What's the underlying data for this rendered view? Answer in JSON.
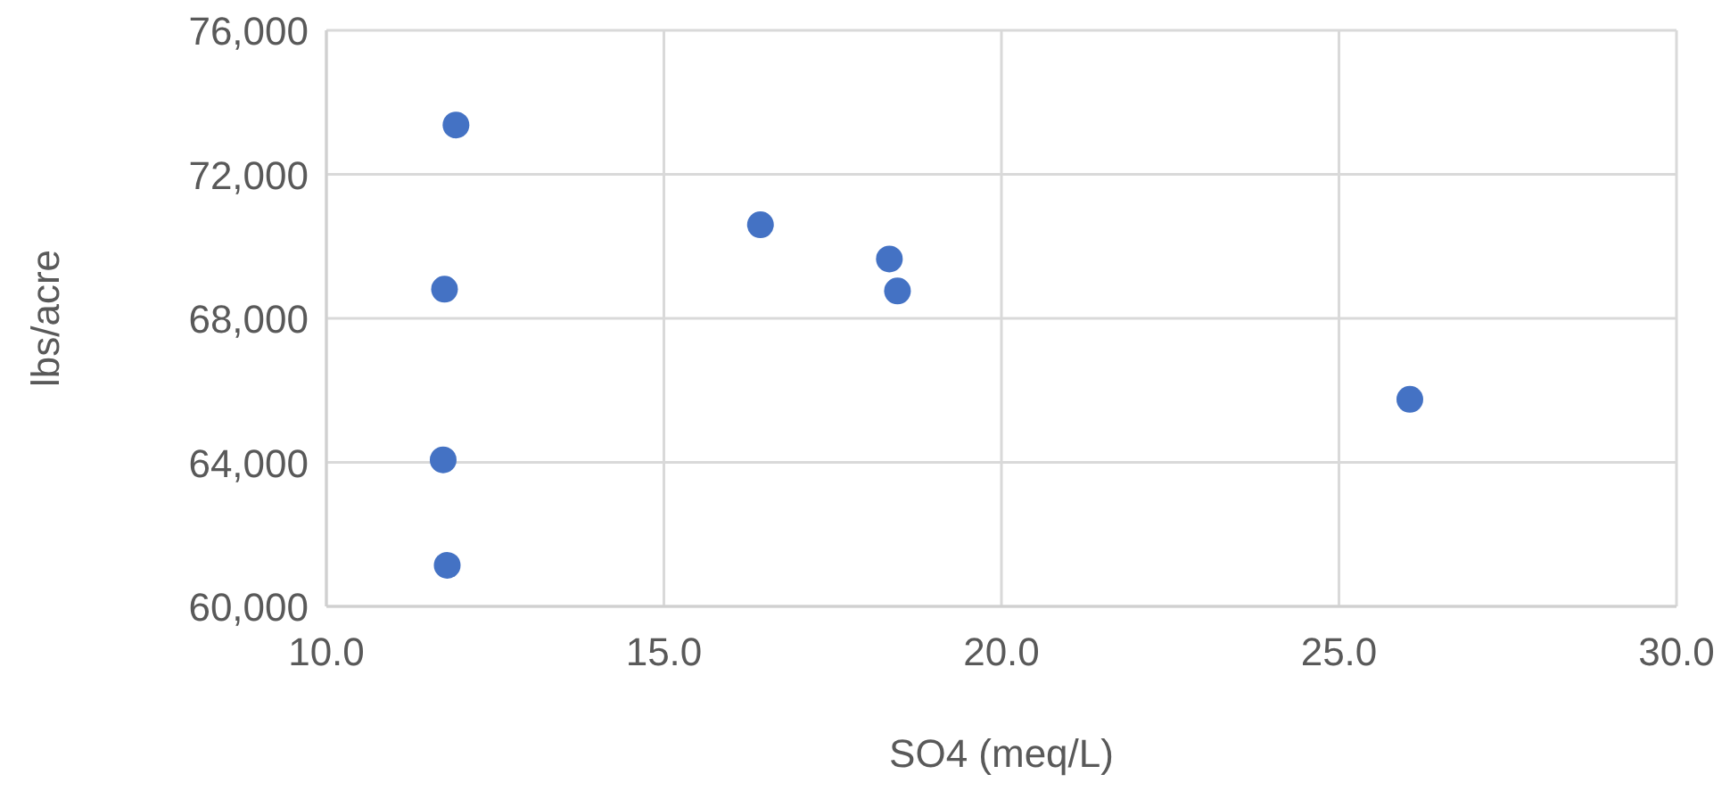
{
  "chart_data": {
    "type": "scatter",
    "xlabel": "SO4 (meq/L)",
    "ylabel": "lbs/acre",
    "x": [
      11.92,
      11.75,
      11.73,
      11.79,
      16.43,
      18.34,
      18.46,
      26.05
    ],
    "values": [
      73370,
      68810,
      64070,
      61140,
      70600,
      69650,
      68760,
      65750
    ],
    "color": "#4472c4",
    "marker": "circle",
    "grid": true,
    "xlim": [
      10,
      30
    ],
    "xticks": [
      {
        "value": 10,
        "label": "10.0"
      },
      {
        "value": 15,
        "label": "15.0"
      },
      {
        "value": 20,
        "label": "20.0"
      },
      {
        "value": 25,
        "label": "25.0"
      },
      {
        "value": 30,
        "label": "30.0"
      }
    ],
    "ylim": [
      60000,
      76000
    ],
    "yticks": [
      {
        "value": 60000,
        "label": "60,000"
      },
      {
        "value": 64000,
        "label": "64,000"
      },
      {
        "value": 68000,
        "label": "68,000"
      },
      {
        "value": 72000,
        "label": "72,000"
      },
      {
        "value": 76000,
        "label": "76,000"
      }
    ]
  }
}
